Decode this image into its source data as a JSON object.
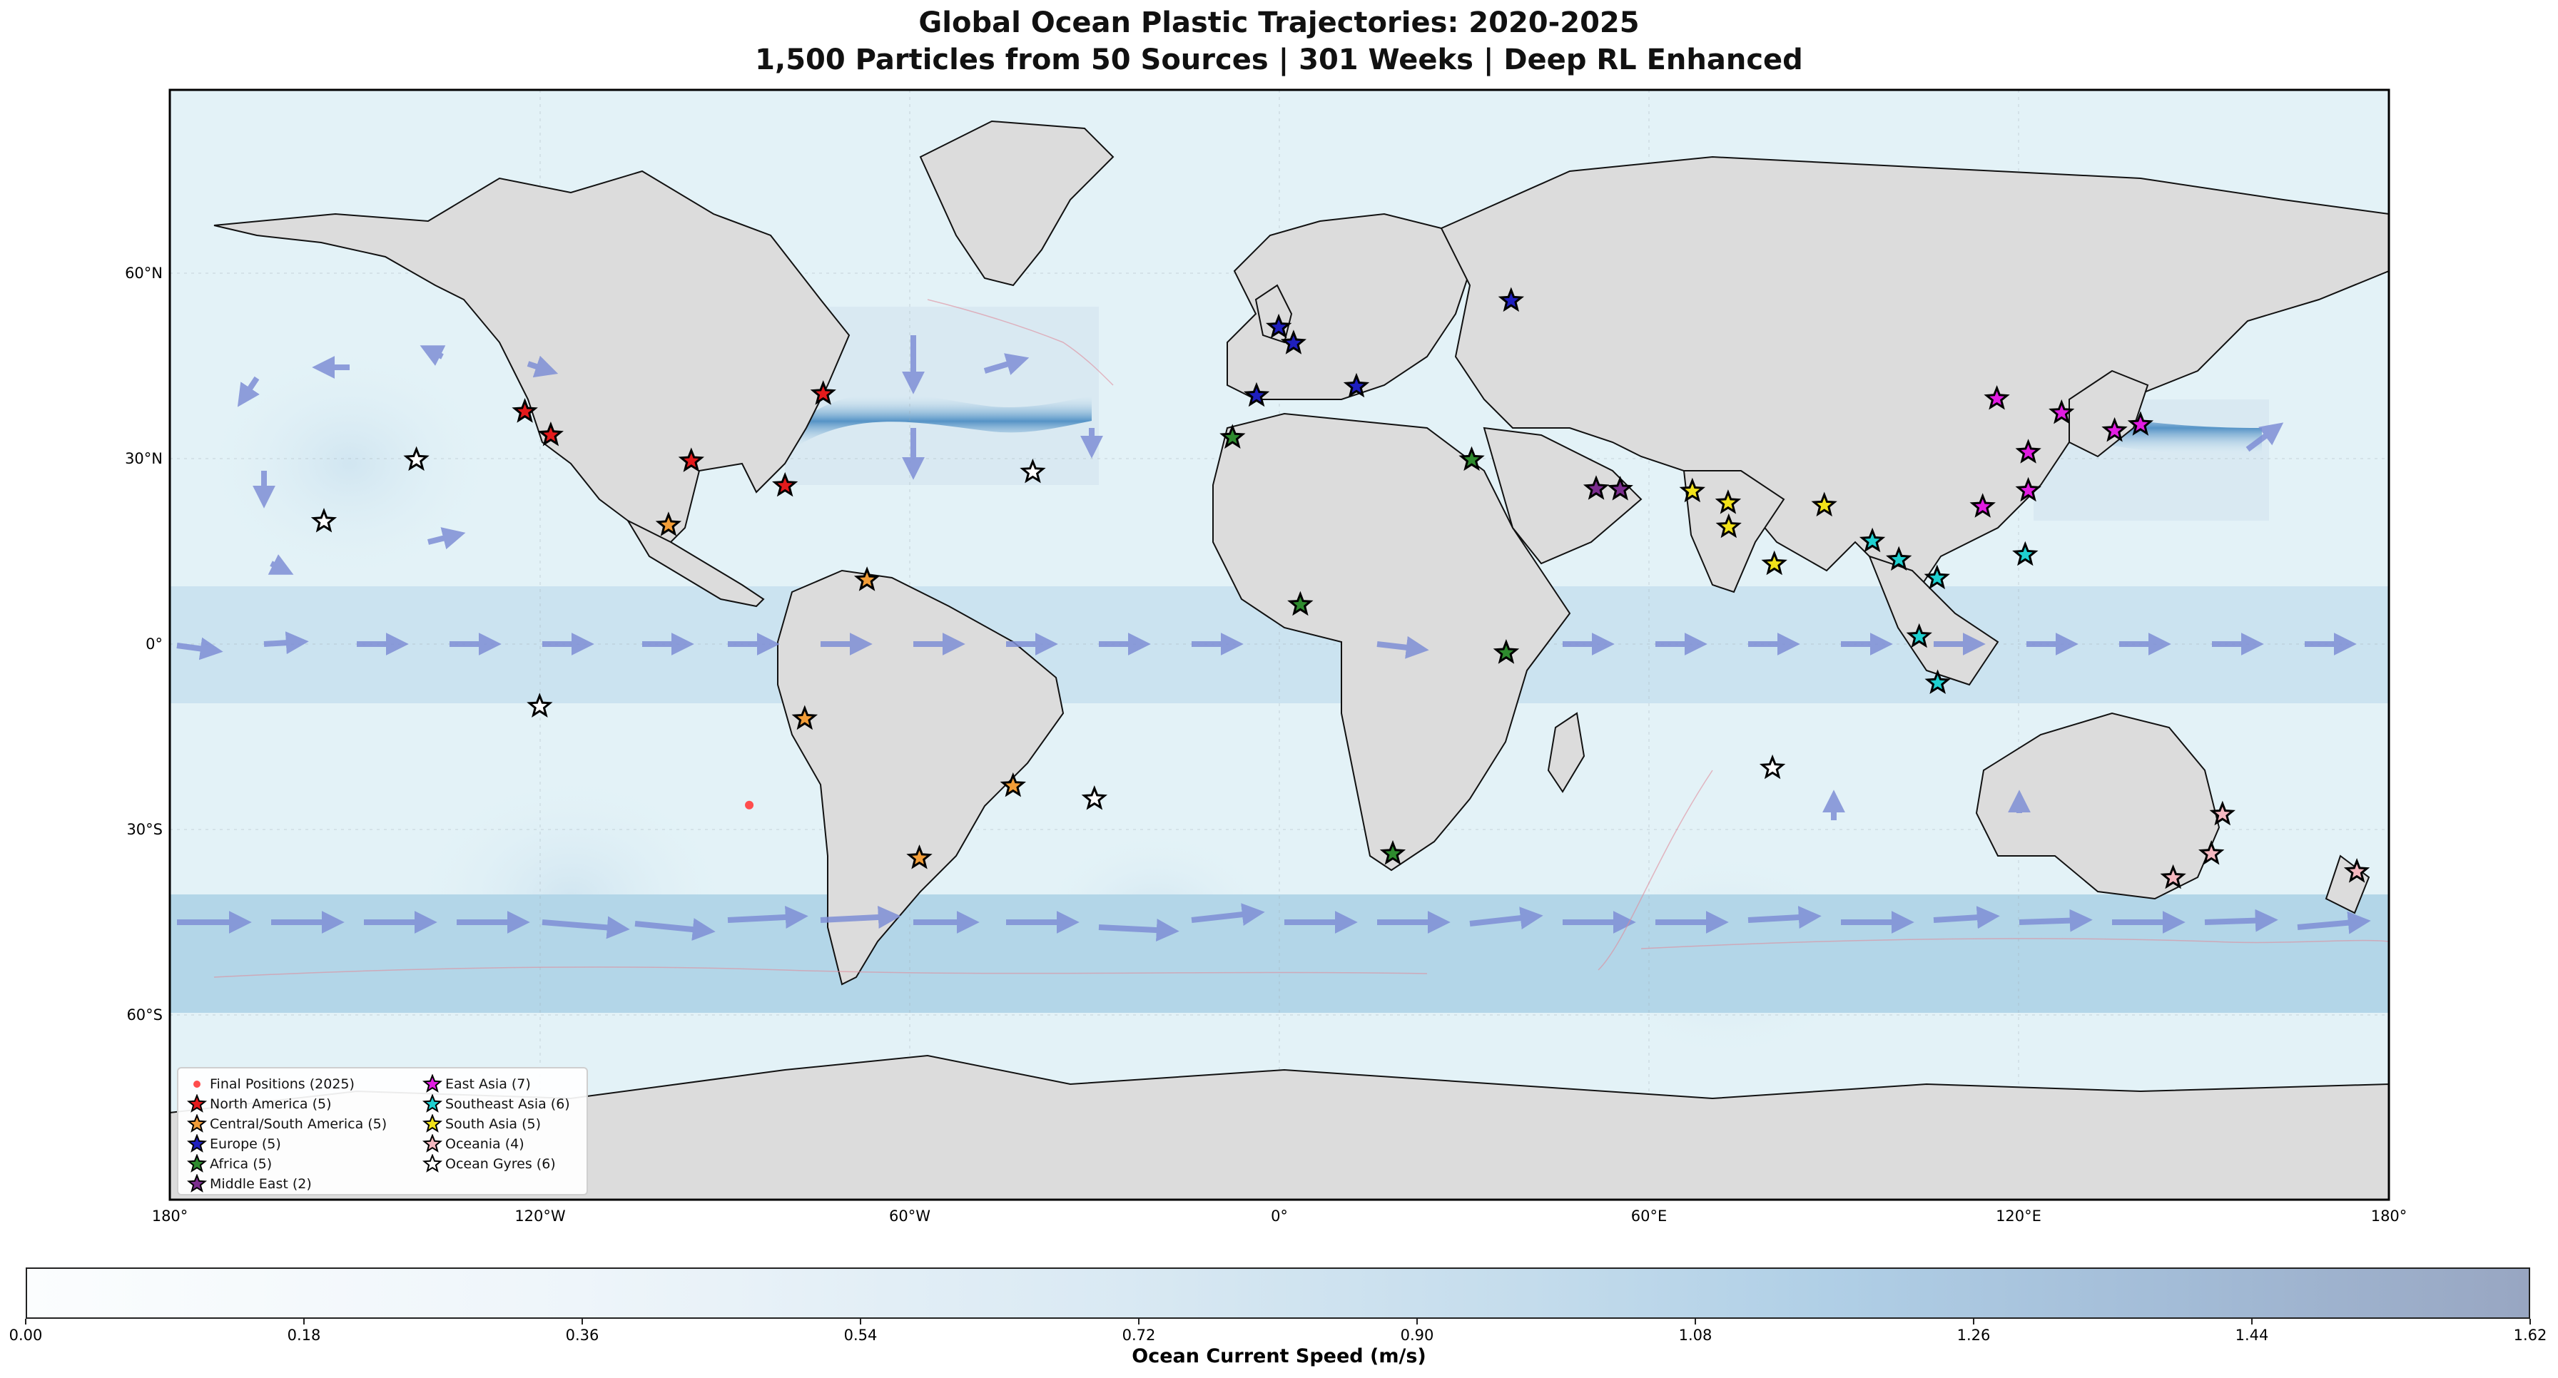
{
  "title": {
    "line1": "Global Ocean Plastic Trajectories: 2020-2025",
    "line2": "1,500 Particles from 50 Sources | 301 Weeks | Deep RL Enhanced"
  },
  "axes": {
    "x_ticks": [
      "180°",
      "120°W",
      "60°W",
      "0°",
      "60°E",
      "120°E",
      "180°"
    ],
    "y_ticks": [
      "60°N",
      "30°N",
      "0°",
      "30°S",
      "60°S"
    ]
  },
  "legend": {
    "col1": [
      {
        "label": "Final Positions (2025)",
        "symbol": "dot",
        "color": "#ff4d4d"
      },
      {
        "label": "North America (5)",
        "symbol": "star",
        "color": "#e41a1c"
      },
      {
        "label": "Central/South America (5)",
        "symbol": "star",
        "color": "#f29d38"
      },
      {
        "label": "Europe (5)",
        "symbol": "star",
        "color": "#1f1fbf"
      },
      {
        "label": "Africa (5)",
        "symbol": "star",
        "color": "#2e8b2e"
      },
      {
        "label": "Middle East (2)",
        "symbol": "star",
        "color": "#7b2d8e"
      }
    ],
    "col2": [
      {
        "label": "East Asia (7)",
        "symbol": "star",
        "color": "#e21de2"
      },
      {
        "label": "Southeast Asia (6)",
        "symbol": "star",
        "color": "#1fd0d0"
      },
      {
        "label": "South Asia (5)",
        "symbol": "star",
        "color": "#f2e21a"
      },
      {
        "label": "Oceania (4)",
        "symbol": "star",
        "color": "#f5b8c0"
      },
      {
        "label": "Ocean Gyres (6)",
        "symbol": "star",
        "color": "#ffffff"
      }
    ]
  },
  "colorbar": {
    "label": "Ocean Current Speed (m/s)",
    "ticks": [
      "0.00",
      "0.18",
      "0.36",
      "0.54",
      "0.72",
      "0.90",
      "1.08",
      "1.26",
      "1.44",
      "1.62"
    ],
    "colors": [
      "#fbfdfe",
      "#d9e9f3",
      "#b0cfe6",
      "#98a6c2"
    ]
  },
  "colors": {
    "ocean": "#e3f2f7",
    "land": "#dcdcdc",
    "current_band": "#b3d6e8",
    "arrow": "#7f8fd6"
  },
  "map_data": {
    "extent": {
      "lon": [
        -180,
        180
      ],
      "lat": [
        -90,
        90
      ]
    },
    "sources": [
      {
        "region": "North America",
        "lon": -122.4,
        "lat": 37.8
      },
      {
        "region": "North America",
        "lon": -118.2,
        "lat": 34.0
      },
      {
        "region": "North America",
        "lon": -95.4,
        "lat": 29.8
      },
      {
        "region": "North America",
        "lon": -80.2,
        "lat": 25.8
      },
      {
        "region": "North America",
        "lon": -74.0,
        "lat": 40.7
      },
      {
        "region": "Central/South America",
        "lon": -99.1,
        "lat": 19.4
      },
      {
        "region": "Central/South America",
        "lon": -66.9,
        "lat": 10.5
      },
      {
        "region": "Central/South America",
        "lon": -77.0,
        "lat": -12.0
      },
      {
        "region": "Central/South America",
        "lon": -43.2,
        "lat": -22.9
      },
      {
        "region": "Central/South America",
        "lon": -58.4,
        "lat": -34.6
      },
      {
        "region": "Europe",
        "lon": -0.1,
        "lat": 51.5
      },
      {
        "region": "Europe",
        "lon": 2.3,
        "lat": 48.9
      },
      {
        "region": "Europe",
        "lon": -3.7,
        "lat": 40.4
      },
      {
        "region": "Europe",
        "lon": 12.5,
        "lat": 41.9
      },
      {
        "region": "Europe",
        "lon": 37.6,
        "lat": 55.8
      },
      {
        "region": "Africa",
        "lon": -7.6,
        "lat": 33.6
      },
      {
        "region": "Africa",
        "lon": 31.2,
        "lat": 30.0
      },
      {
        "region": "Africa",
        "lon": 3.4,
        "lat": 6.5
      },
      {
        "region": "Africa",
        "lon": 36.8,
        "lat": -1.3
      },
      {
        "region": "Africa",
        "lon": 18.4,
        "lat": -33.9
      },
      {
        "region": "Middle East",
        "lon": 51.4,
        "lat": 25.3
      },
      {
        "region": "Middle East",
        "lon": 55.3,
        "lat": 25.2
      },
      {
        "region": "East Asia",
        "lon": 116.4,
        "lat": 39.9
      },
      {
        "region": "East Asia",
        "lon": 121.5,
        "lat": 31.2
      },
      {
        "region": "East Asia",
        "lon": 121.5,
        "lat": 25.0
      },
      {
        "region": "East Asia",
        "lon": 126.9,
        "lat": 37.6
      },
      {
        "region": "East Asia",
        "lon": 139.7,
        "lat": 35.7
      },
      {
        "region": "East Asia",
        "lon": 135.5,
        "lat": 34.7
      },
      {
        "region": "East Asia",
        "lon": 114.1,
        "lat": 22.4
      },
      {
        "region": "Southeast Asia",
        "lon": 100.5,
        "lat": 13.8
      },
      {
        "region": "Southeast Asia",
        "lon": 106.7,
        "lat": 10.8
      },
      {
        "region": "Southeast Asia",
        "lon": 121.0,
        "lat": 14.6
      },
      {
        "region": "Southeast Asia",
        "lon": 103.8,
        "lat": 1.3
      },
      {
        "region": "Southeast Asia",
        "lon": 106.8,
        "lat": -6.2
      },
      {
        "region": "Southeast Asia",
        "lon": 96.2,
        "lat": 16.8
      },
      {
        "region": "South Asia",
        "lon": 72.9,
        "lat": 19.1
      },
      {
        "region": "South Asia",
        "lon": 67.0,
        "lat": 24.9
      },
      {
        "region": "South Asia",
        "lon": 80.3,
        "lat": 13.1
      },
      {
        "region": "South Asia",
        "lon": 88.4,
        "lat": 22.6
      },
      {
        "region": "South Asia",
        "lon": 72.8,
        "lat": 23.0
      },
      {
        "region": "Oceania",
        "lon": 151.2,
        "lat": -33.9
      },
      {
        "region": "Oceania",
        "lon": 145.0,
        "lat": -37.8
      },
      {
        "region": "Oceania",
        "lon": 153.0,
        "lat": -27.5
      },
      {
        "region": "Oceania",
        "lon": 174.8,
        "lat": -36.8
      },
      {
        "region": "Ocean Gyres",
        "lon": -140.0,
        "lat": 30.0
      },
      {
        "region": "Ocean Gyres",
        "lon": -40.0,
        "lat": 28.0
      },
      {
        "region": "Ocean Gyres",
        "lon": -30.0,
        "lat": -25.0
      },
      {
        "region": "Ocean Gyres",
        "lon": -120.0,
        "lat": -10.0
      },
      {
        "region": "Ocean Gyres",
        "lon": 80.0,
        "lat": -20.0
      },
      {
        "region": "Ocean Gyres",
        "lon": -155.0,
        "lat": 20.0
      }
    ],
    "final_positions": [
      {
        "lon": -86.0,
        "lat": -26.0
      }
    ]
  }
}
